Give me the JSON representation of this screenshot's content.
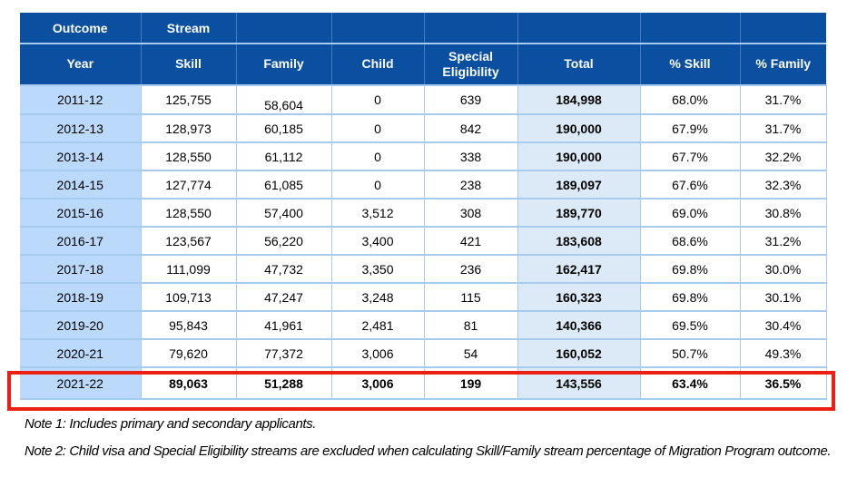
{
  "colors": {
    "header_bg": "#0A4FA0",
    "header_text": "#FFFFFF",
    "year_column_bg": "#BBD9FA",
    "total_column_bg": "#DCE9F6",
    "grid_line": "#A7CBEC",
    "highlight_border": "#EB2012",
    "body_text": "#000000"
  },
  "table": {
    "header_row1": [
      "Outcome",
      "Stream",
      "",
      "",
      "",
      "",
      "",
      ""
    ],
    "header_row2": [
      "Year",
      "Skill",
      "Family",
      "Child",
      "Special Eligibility",
      "Total",
      "% Skill",
      "% Family"
    ],
    "rows": [
      {
        "year": "2011-12",
        "skill": "125,755",
        "family": "58,604",
        "child": "0",
        "special_eligibility": "639",
        "total": "184,998",
        "pct_skill": "68.0%",
        "pct_family": "31.7%"
      },
      {
        "year": "2012-13",
        "skill": "128,973",
        "family": "60,185",
        "child": "0",
        "special_eligibility": "842",
        "total": "190,000",
        "pct_skill": "67.9%",
        "pct_family": "31.7%"
      },
      {
        "year": "2013-14",
        "skill": "128,550",
        "family": "61,112",
        "child": "0",
        "special_eligibility": "338",
        "total": "190,000",
        "pct_skill": "67.7%",
        "pct_family": "32.2%"
      },
      {
        "year": "2014-15",
        "skill": "127,774",
        "family": "61,085",
        "child": "0",
        "special_eligibility": "238",
        "total": "189,097",
        "pct_skill": "67.6%",
        "pct_family": "32.3%"
      },
      {
        "year": "2015-16",
        "skill": "128,550",
        "family": "57,400",
        "child": "3,512",
        "special_eligibility": "308",
        "total": "189,770",
        "pct_skill": "69.0%",
        "pct_family": "30.8%"
      },
      {
        "year": "2016-17",
        "skill": "123,567",
        "family": "56,220",
        "child": "3,400",
        "special_eligibility": "421",
        "total": "183,608",
        "pct_skill": "68.6%",
        "pct_family": "31.2%"
      },
      {
        "year": "2017-18",
        "skill": "111,099",
        "family": "47,732",
        "child": "3,350",
        "special_eligibility": "236",
        "total": "162,417",
        "pct_skill": "69.8%",
        "pct_family": "30.0%"
      },
      {
        "year": "2018-19",
        "skill": "109,713",
        "family": "47,247",
        "child": "3,248",
        "special_eligibility": "115",
        "total": "160,323",
        "pct_skill": "69.8%",
        "pct_family": "30.1%"
      },
      {
        "year": "2019-20",
        "skill": "95,843",
        "family": "41,961",
        "child": "2,481",
        "special_eligibility": "81",
        "total": "140,366",
        "pct_skill": "69.5%",
        "pct_family": "30.4%"
      },
      {
        "year": "2020-21",
        "skill": "79,620",
        "family": "77,372",
        "child": "3,006",
        "special_eligibility": "54",
        "total": "160,052",
        "pct_skill": "50.7%",
        "pct_family": "49.3%"
      },
      {
        "year": "2021-22",
        "skill": "89,063",
        "family": "51,288",
        "child": "3,006",
        "special_eligibility": "199",
        "total": "143,556",
        "pct_skill": "63.4%",
        "pct_family": "36.5%",
        "highlight": true
      }
    ]
  },
  "notes": [
    "Note 1: Includes primary and secondary applicants.",
    "Note 2: Child visa and Special Eligibility streams are excluded when calculating Skill/Family stream percentage of Migration Program outcome."
  ]
}
